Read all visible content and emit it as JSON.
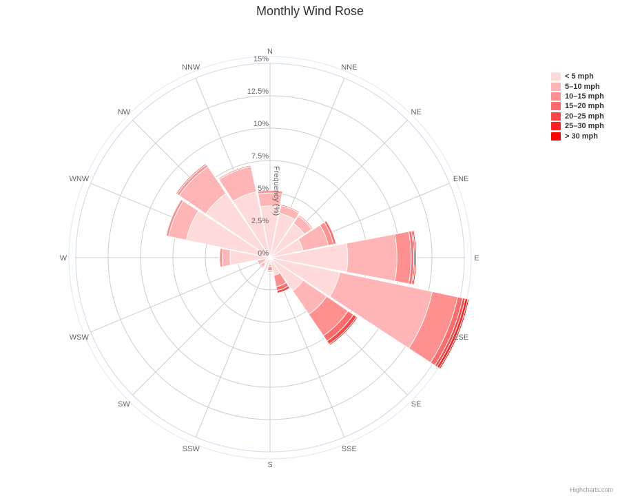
{
  "chart_data": {
    "type": "polar-stacked-column",
    "title": "Monthly Wind Rose",
    "categories": [
      "N",
      "NNE",
      "NE",
      "ENE",
      "E",
      "ESE",
      "SE",
      "SSE",
      "S",
      "SSW",
      "SW",
      "WSW",
      "W",
      "WNW",
      "NW",
      "NNW"
    ],
    "radial_axis": {
      "label": "Frequency (%)",
      "min": 0,
      "max": 15,
      "ticks": [
        0,
        2.5,
        5,
        7.5,
        10,
        12.5,
        15
      ],
      "tick_labels": [
        "0%",
        "2.5%",
        "5%",
        "7.5%",
        "10%",
        "12.5%",
        "15%"
      ]
    },
    "grid": true,
    "legend_position": "top-right",
    "series": [
      {
        "name": "< 5 mph",
        "color": "#ffdada",
        "values": [
          4.0,
          3.5,
          3.2,
          2.6,
          6.0,
          5.5,
          3.1,
          1.4,
          0.5,
          0.2,
          0.6,
          0.4,
          3.1,
          6.6,
          6.0,
          5.2
        ]
      },
      {
        "name": "5–10 mph",
        "color": "#ffb5b5",
        "values": [
          1.0,
          0.6,
          0.7,
          2.0,
          3.8,
          7.3,
          2.2,
          0.0,
          0.2,
          0.0,
          0.3,
          0.6,
          0.6,
          1.4,
          2.5,
          2.0
        ]
      },
      {
        "name": "10–15 mph",
        "color": "#ff9090",
        "values": [
          0.2,
          0.1,
          0.1,
          0.4,
          1.1,
          2.0,
          2.0,
          0.9,
          0.3,
          0.0,
          0.1,
          0.0,
          0.2,
          0.2,
          0.2,
          0.1
        ]
      },
      {
        "name": "15–20 mph",
        "color": "#ff6b6b",
        "values": [
          0.0,
          0.0,
          0.0,
          0.2,
          0.2,
          0.4,
          0.5,
          0.3,
          0.1,
          0.0,
          0.0,
          0.0,
          0.0,
          0.0,
          0.1,
          0.0
        ]
      },
      {
        "name": "20–25 mph",
        "color": "#ff4646",
        "values": [
          0.0,
          0.0,
          0.0,
          0.0,
          0.1,
          0.2,
          0.3,
          0.2,
          0.0,
          0.0,
          0.0,
          0.0,
          0.0,
          0.0,
          0.0,
          0.0
        ]
      },
      {
        "name": "25–30 mph",
        "color": "#ff2121",
        "values": [
          0.0,
          0.0,
          0.0,
          0.0,
          0.1,
          0.2,
          0.1,
          0.0,
          0.0,
          0.0,
          0.0,
          0.0,
          0.0,
          0.0,
          0.0,
          0.0
        ]
      },
      {
        "name": "> 30 mph",
        "color": "#ff0000",
        "values": [
          0.0,
          0.0,
          0.0,
          0.0,
          0.0,
          0.1,
          0.0,
          0.0,
          0.0,
          0.0,
          0.0,
          0.0,
          0.0,
          0.0,
          0.0,
          0.0
        ]
      }
    ]
  },
  "credits": "Highcharts.com"
}
